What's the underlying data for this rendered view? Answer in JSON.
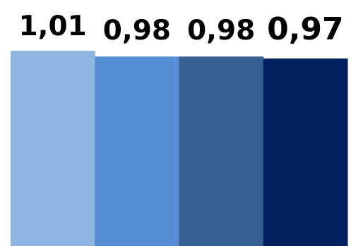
{
  "chart_data": {
    "type": "bar",
    "categories": [
      "",
      "",
      "",
      ""
    ],
    "values": [
      1.01,
      0.98,
      0.98,
      0.97
    ],
    "labels": [
      "1,01",
      "0,98",
      "0,98",
      "0,97"
    ],
    "colors": [
      "#8EB4E3",
      "#558ED5",
      "#366092",
      "#002060"
    ],
    "title": "",
    "xlabel": "",
    "ylabel": "",
    "ylim": [
      0,
      1.01
    ],
    "grid": false,
    "legend": "none"
  }
}
